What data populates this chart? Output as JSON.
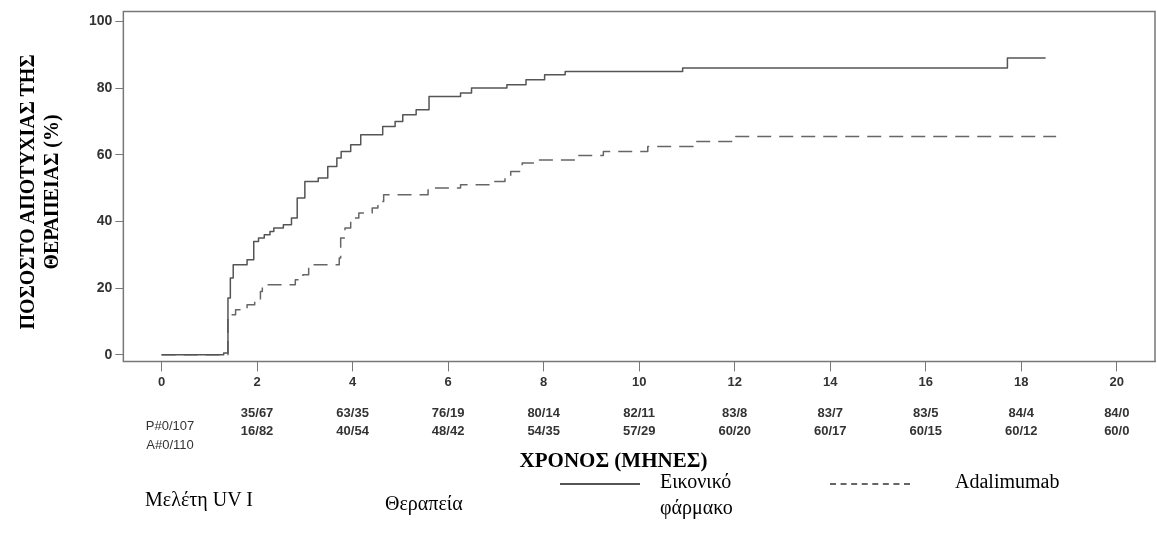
{
  "chart_data": {
    "type": "step",
    "ylabel": "ΠΟΣΟΣΤΟ ΑΠΟΤΥΧΙΑΣ ΤΗΣ ΘΕΡΑΠΕΙΑΣ (%)",
    "xlabel": "ΧΡΟΝΟΣ (ΜΗΝΕΣ)",
    "legend_title": "Θεραπεία",
    "legend": "bottom",
    "xlim": [
      -0.8,
      20.8
    ],
    "xticks": [
      0,
      2,
      4,
      6,
      8,
      10,
      12,
      14,
      16,
      18,
      20
    ],
    "ylim": [
      -2,
      103
    ],
    "yticks": [
      0,
      20,
      40,
      60,
      80,
      100
    ],
    "grid": false,
    "marker": "none",
    "series": [
      {
        "name": "Εικονικό φάρμακο",
        "color": "#555555",
        "line_style": "solid",
        "x": [
          0,
          1.3,
          1.39,
          1.44,
          1.5,
          1.79,
          1.93,
          2.03,
          2.15,
          2.27,
          2.35,
          2.55,
          2.72,
          2.84,
          3.0,
          3.28,
          3.48,
          3.67,
          3.76,
          3.96,
          4.17,
          4.63,
          4.89,
          5.05,
          5.33,
          5.6,
          6.26,
          6.49,
          7.23,
          7.63,
          8.02,
          8.45,
          10.91,
          17.71,
          18.51
        ],
        "values": [
          0,
          0.5,
          17,
          23,
          27,
          28.5,
          34,
          35,
          36,
          37,
          38,
          39,
          41,
          47,
          52,
          53,
          56.5,
          59,
          61,
          63,
          66,
          68.5,
          70,
          72,
          73.5,
          77.5,
          78.5,
          80,
          81,
          82.5,
          84,
          85,
          86,
          89,
          89
        ]
      },
      {
        "name": "Adalimumab",
        "color": "#666666",
        "line_style": "dashed",
        "x": [
          0,
          1.39,
          1.55,
          1.79,
          1.95,
          2.07,
          2.11,
          2.8,
          2.96,
          3.08,
          3.72,
          3.75,
          3.84,
          3.96,
          4.13,
          4.41,
          4.53,
          4.65,
          5.58,
          6.26,
          6.95,
          7.19,
          7.31,
          7.55,
          7.87,
          8.7,
          9.25,
          10.18,
          11.13,
          12.02,
          18.73
        ],
        "values": [
          0,
          12,
          13.5,
          15,
          16.5,
          19,
          21,
          22.5,
          24,
          27,
          29,
          35,
          38,
          41,
          42.5,
          44,
          46,
          48,
          50,
          51,
          52,
          53,
          55,
          57.5,
          58.4,
          59.8,
          61,
          62.5,
          64,
          65.5,
          65.5
        ]
      }
    ],
    "annotations": [
      "P#0/107",
      "A#0/110",
      "35/67",
      "63/35",
      "76/19",
      "80/14",
      "82/11",
      "83/8",
      "83/7",
      "83/5",
      "84/4",
      "84/0",
      "16/82",
      "40/54",
      "48/42",
      "54/35",
      "57/29",
      "60/20",
      "60/17",
      "60/15",
      "60/12",
      "60/0",
      "Μελέτη UV I"
    ]
  }
}
